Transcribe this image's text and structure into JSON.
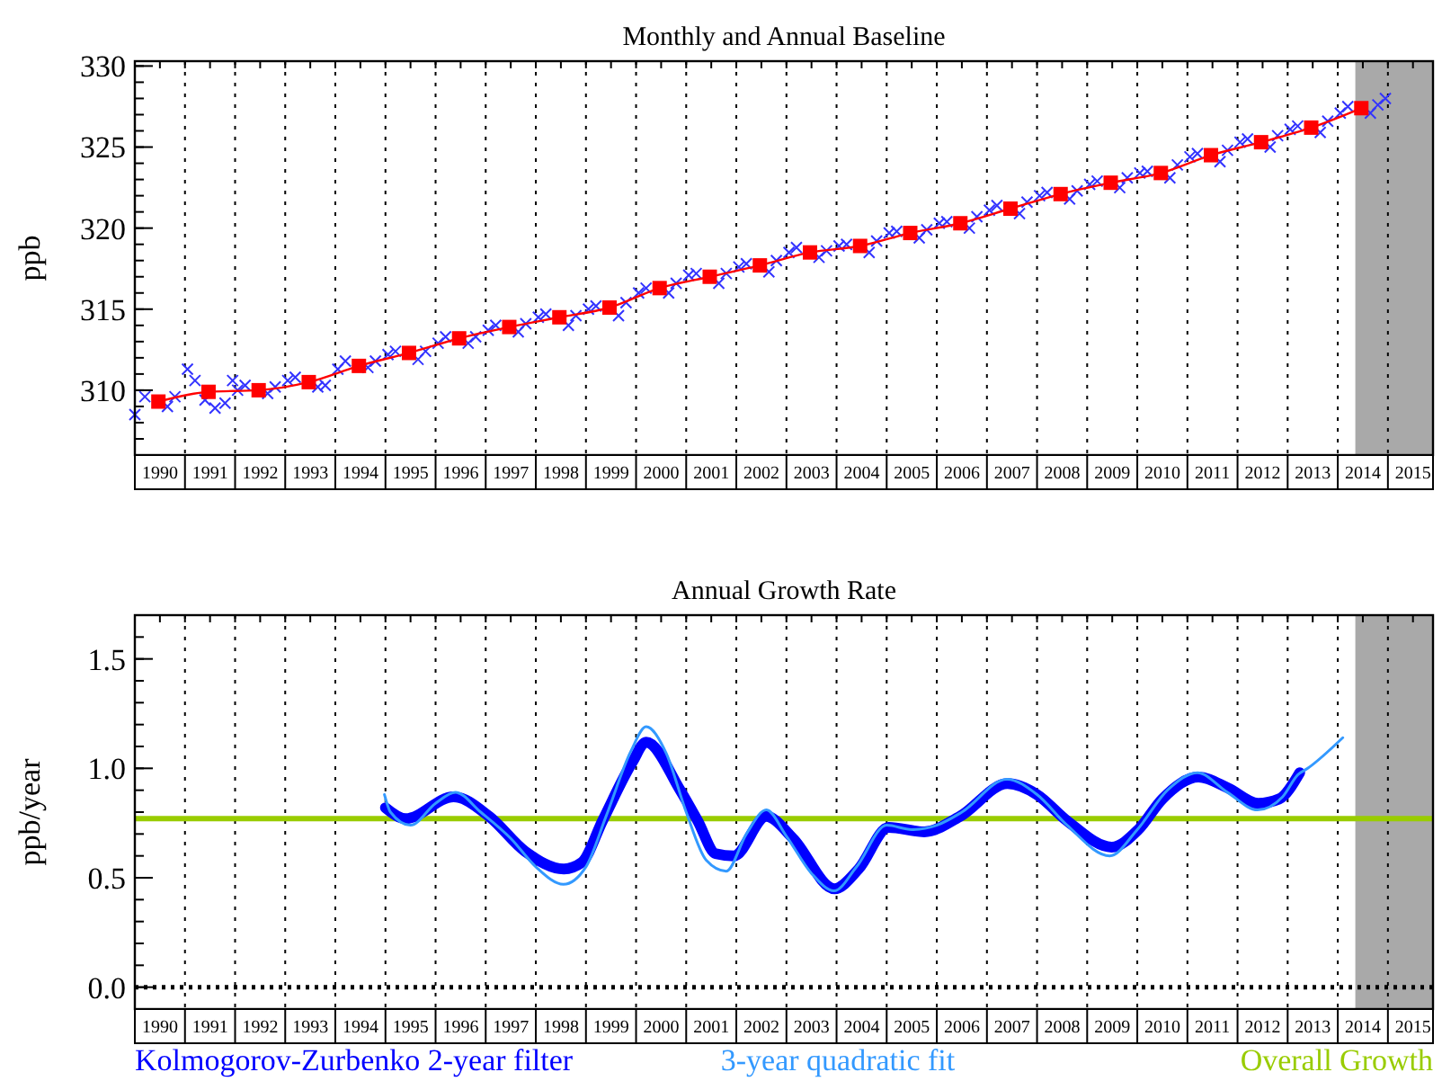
{
  "chart_data": [
    {
      "type": "scatter",
      "title": "Monthly and Annual Baseline",
      "ylabel": "ppb",
      "xlim": [
        1990,
        2015.9
      ],
      "ylim": [
        306,
        330.3
      ],
      "xticks": [
        {
          "value": 1990.5,
          "label": "1990"
        },
        {
          "value": 1991.5,
          "label": "1991"
        },
        {
          "value": 1992.5,
          "label": "1992"
        },
        {
          "value": 1993.5,
          "label": "1993"
        },
        {
          "value": 1994.5,
          "label": "1994"
        },
        {
          "value": 1995.5,
          "label": "1995"
        },
        {
          "value": 1996.5,
          "label": "1996"
        },
        {
          "value": 1997.5,
          "label": "1997"
        },
        {
          "value": 1998.5,
          "label": "1998"
        },
        {
          "value": 1999.5,
          "label": "1999"
        },
        {
          "value": 2000.5,
          "label": "2000"
        },
        {
          "value": 2001.5,
          "label": "2001"
        },
        {
          "value": 2002.5,
          "label": "2002"
        },
        {
          "value": 2003.5,
          "label": "2003"
        },
        {
          "value": 2004.5,
          "label": "2004"
        },
        {
          "value": 2005.5,
          "label": "2005"
        },
        {
          "value": 2006.5,
          "label": "2006"
        },
        {
          "value": 2007.5,
          "label": "2007"
        },
        {
          "value": 2008.5,
          "label": "2008"
        },
        {
          "value": 2009.5,
          "label": "2009"
        },
        {
          "value": 2010.5,
          "label": "2010"
        },
        {
          "value": 2011.5,
          "label": "2011"
        },
        {
          "value": 2012.5,
          "label": "2012"
        },
        {
          "value": 2013.5,
          "label": "2013"
        },
        {
          "value": 2014.5,
          "label": "2014"
        },
        {
          "value": 2015.5,
          "label": "2015"
        },
        {
          "value": 1991,
          "label": null
        },
        {
          "value": 1992,
          "label": null
        },
        {
          "value": 1993,
          "label": null
        },
        {
          "value": 1994,
          "label": null
        },
        {
          "value": 1995,
          "label": null
        },
        {
          "value": 1996,
          "label": null
        },
        {
          "value": 1997,
          "label": null
        },
        {
          "value": 1998,
          "label": null
        },
        {
          "value": 1999,
          "label": null
        },
        {
          "value": 2000,
          "label": null
        },
        {
          "value": 2001,
          "label": null
        },
        {
          "value": 2002,
          "label": null
        },
        {
          "value": 2003,
          "label": null
        },
        {
          "value": 2004,
          "label": null
        },
        {
          "value": 2005,
          "label": null
        },
        {
          "value": 2006,
          "label": null
        },
        {
          "value": 2007,
          "label": null
        },
        {
          "value": 2008,
          "label": null
        },
        {
          "value": 2009,
          "label": null
        },
        {
          "value": 2010,
          "label": null
        },
        {
          "value": 2011,
          "label": null
        },
        {
          "value": 2012,
          "label": null
        },
        {
          "value": 2013,
          "label": null
        },
        {
          "value": 2014,
          "label": null
        },
        {
          "value": 2015,
          "label": null
        }
      ],
      "yticks": [
        310,
        315,
        320,
        325,
        330
      ],
      "grid": "x",
      "legend": false,
      "bands": [
        {
          "axis": "x",
          "from": 2014.35,
          "to": 2015.9,
          "color": "#a9a9a9"
        }
      ],
      "series": [
        {
          "type": "scatter",
          "marker": "cross",
          "color": "#3333ff",
          "x": [
            1990.0,
            1990.2,
            1990.65,
            1990.8,
            1991.05,
            1991.2,
            1991.4,
            1991.6,
            1991.8,
            1991.95,
            1992.05,
            1992.2,
            1992.65,
            1992.8,
            1993.05,
            1993.2,
            1993.65,
            1993.8,
            1994.05,
            1994.2,
            1994.65,
            1994.8,
            1995.05,
            1995.2,
            1995.65,
            1995.8,
            1996.05,
            1996.2,
            1996.65,
            1996.8,
            1997.05,
            1997.2,
            1997.65,
            1997.8,
            1998.05,
            1998.2,
            1998.65,
            1998.8,
            1999.05,
            1999.2,
            1999.65,
            1999.8,
            2000.05,
            2000.2,
            2000.65,
            2000.8,
            2001.05,
            2001.2,
            2001.65,
            2001.8,
            2002.05,
            2002.2,
            2002.65,
            2002.8,
            2003.05,
            2003.2,
            2003.65,
            2003.8,
            2004.05,
            2004.2,
            2004.65,
            2004.8,
            2005.05,
            2005.2,
            2005.65,
            2005.8,
            2006.05,
            2006.2,
            2006.65,
            2006.8,
            2007.05,
            2007.2,
            2007.65,
            2007.8,
            2008.05,
            2008.2,
            2008.65,
            2008.8,
            2009.05,
            2009.2,
            2009.65,
            2009.8,
            2010.05,
            2010.2,
            2010.65,
            2010.8,
            2011.05,
            2011.2,
            2011.65,
            2011.8,
            2012.05,
            2012.2,
            2012.65,
            2012.8,
            2013.05,
            2013.2,
            2013.65,
            2013.8,
            2014.05,
            2014.2,
            2014.65,
            2014.8,
            2014.95
          ],
          "values": [
            308.5,
            309.6,
            309.0,
            309.6,
            311.3,
            310.6,
            309.4,
            308.9,
            309.2,
            310.6,
            310.0,
            310.3,
            309.8,
            310.2,
            310.6,
            310.8,
            310.2,
            310.3,
            311.3,
            311.8,
            311.4,
            311.8,
            312.2,
            312.4,
            311.9,
            312.4,
            312.9,
            313.3,
            312.9,
            313.3,
            313.7,
            314.0,
            313.6,
            314.1,
            314.5,
            314.7,
            314.0,
            314.6,
            315.0,
            315.2,
            314.6,
            315.4,
            316.0,
            316.3,
            316.0,
            316.6,
            317.1,
            317.2,
            316.6,
            317.2,
            317.6,
            317.8,
            317.3,
            318.0,
            318.5,
            318.8,
            318.2,
            318.6,
            318.9,
            319.0,
            318.5,
            319.2,
            319.7,
            319.8,
            319.4,
            319.9,
            320.3,
            320.4,
            320.0,
            320.7,
            321.1,
            321.4,
            320.9,
            321.6,
            322.0,
            322.2,
            321.8,
            322.3,
            322.7,
            322.9,
            322.5,
            323.1,
            323.4,
            323.5,
            323.1,
            323.9,
            324.4,
            324.6,
            324.1,
            324.8,
            325.3,
            325.5,
            325.0,
            325.7,
            326.1,
            326.3,
            325.9,
            326.6,
            327.1,
            327.5,
            327.1,
            327.6,
            328.0
          ]
        },
        {
          "type": "line",
          "marker": "square",
          "color": "#ff0000",
          "x": [
            1990.47,
            1991.47,
            1992.47,
            1993.47,
            1994.47,
            1995.47,
            1996.47,
            1997.47,
            1998.47,
            1999.47,
            2000.47,
            2001.47,
            2002.47,
            2003.47,
            2004.47,
            2005.47,
            2006.47,
            2007.47,
            2008.47,
            2009.47,
            2010.47,
            2011.47,
            2012.47,
            2013.47,
            2014.47
          ],
          "values": [
            309.3,
            309.9,
            310.0,
            310.5,
            311.5,
            312.3,
            313.2,
            313.9,
            314.5,
            315.1,
            316.3,
            317.0,
            317.7,
            318.5,
            318.9,
            319.7,
            320.3,
            321.2,
            322.1,
            322.8,
            323.4,
            324.5,
            325.3,
            326.2,
            327.4
          ]
        }
      ]
    },
    {
      "type": "line",
      "title": "Annual Growth Rate",
      "ylabel": "ppb/year",
      "xlim": [
        1990,
        2015.9
      ],
      "ylim": [
        -0.1,
        1.7
      ],
      "xticks": [
        {
          "value": 1990.5,
          "label": "1990"
        },
        {
          "value": 1991.5,
          "label": "1991"
        },
        {
          "value": 1992.5,
          "label": "1992"
        },
        {
          "value": 1993.5,
          "label": "1993"
        },
        {
          "value": 1994.5,
          "label": "1994"
        },
        {
          "value": 1995.5,
          "label": "1995"
        },
        {
          "value": 1996.5,
          "label": "1996"
        },
        {
          "value": 1997.5,
          "label": "1997"
        },
        {
          "value": 1998.5,
          "label": "1998"
        },
        {
          "value": 1999.5,
          "label": "1999"
        },
        {
          "value": 2000.5,
          "label": "2000"
        },
        {
          "value": 2001.5,
          "label": "2001"
        },
        {
          "value": 2002.5,
          "label": "2002"
        },
        {
          "value": 2003.5,
          "label": "2003"
        },
        {
          "value": 2004.5,
          "label": "2004"
        },
        {
          "value": 2005.5,
          "label": "2005"
        },
        {
          "value": 2006.5,
          "label": "2006"
        },
        {
          "value": 2007.5,
          "label": "2007"
        },
        {
          "value": 2008.5,
          "label": "2008"
        },
        {
          "value": 2009.5,
          "label": "2009"
        },
        {
          "value": 2010.5,
          "label": "2010"
        },
        {
          "value": 2011.5,
          "label": "2011"
        },
        {
          "value": 2012.5,
          "label": "2012"
        },
        {
          "value": 2013.5,
          "label": "2013"
        },
        {
          "value": 2014.5,
          "label": "2014"
        },
        {
          "value": 2015.5,
          "label": "2015"
        },
        {
          "value": 1991,
          "label": null
        },
        {
          "value": 1992,
          "label": null
        },
        {
          "value": 1993,
          "label": null
        },
        {
          "value": 1994,
          "label": null
        },
        {
          "value": 1995,
          "label": null
        },
        {
          "value": 1996,
          "label": null
        },
        {
          "value": 1997,
          "label": null
        },
        {
          "value": 1998,
          "label": null
        },
        {
          "value": 1999,
          "label": null
        },
        {
          "value": 2000,
          "label": null
        },
        {
          "value": 2001,
          "label": null
        },
        {
          "value": 2002,
          "label": null
        },
        {
          "value": 2003,
          "label": null
        },
        {
          "value": 2004,
          "label": null
        },
        {
          "value": 2005,
          "label": null
        },
        {
          "value": 2006,
          "label": null
        },
        {
          "value": 2007,
          "label": null
        },
        {
          "value": 2008,
          "label": null
        },
        {
          "value": 2009,
          "label": null
        },
        {
          "value": 2010,
          "label": null
        },
        {
          "value": 2011,
          "label": null
        },
        {
          "value": 2012,
          "label": null
        },
        {
          "value": 2013,
          "label": null
        },
        {
          "value": 2014,
          "label": null
        },
        {
          "value": 2015,
          "label": null
        }
      ],
      "yticks": [
        {
          "value": 0,
          "label": "0.0"
        },
        {
          "value": 0.5,
          "label": "0.5"
        },
        {
          "value": 1,
          "label": "1.0"
        },
        {
          "value": 1.5,
          "label": "1.5"
        }
      ],
      "grid": "x",
      "legend": "bottom",
      "marker": "none",
      "bands": [
        {
          "axis": "x",
          "from": 2014.35,
          "to": 2015.9,
          "color": "#a9a9a9"
        }
      ],
      "ref_lines": [
        {
          "axis": "y",
          "value": 0,
          "line_style": "dotted",
          "color": "#000000"
        },
        {
          "axis": "y",
          "value": 0.77,
          "label": "Overall Growth",
          "color": "#99cc00"
        }
      ],
      "series": [
        {
          "name": "Kolmogorov-Zurbenko 2-year filter",
          "color": "#0000ff",
          "x": [
            1995.0,
            1995.4,
            1996.36,
            1997.07,
            1997.79,
            1998.56,
            1998.92,
            1999.33,
            1999.93,
            2000.2,
            2000.88,
            2001.23,
            2001.59,
            2001.95,
            2002.6,
            2003.13,
            2003.96,
            2004.44,
            2005.04,
            2005.75,
            2006.46,
            2007.41,
            2008.0,
            2008.6,
            2009.49,
            2010.02,
            2010.5,
            2011.22,
            2011.81,
            2012.41,
            2012.83,
            2013.24
          ],
          "values": [
            0.82,
            0.77,
            0.87,
            0.78,
            0.62,
            0.54,
            0.57,
            0.76,
            1.03,
            1.12,
            0.9,
            0.76,
            0.61,
            0.6,
            0.78,
            0.68,
            0.45,
            0.54,
            0.73,
            0.71,
            0.78,
            0.93,
            0.88,
            0.76,
            0.64,
            0.72,
            0.86,
            0.96,
            0.91,
            0.84,
            0.86,
            0.98
          ]
        },
        {
          "name": "3-year quadratic fit",
          "color": "#3399ff",
          "x": [
            1994.98,
            1995.1,
            1995.5,
            1996.0,
            1996.4,
            1996.9,
            1997.5,
            1998.0,
            1998.55,
            1999.0,
            1999.4,
            1999.9,
            2000.2,
            2000.6,
            2001.0,
            2001.4,
            2001.8,
            2002.2,
            2002.6,
            2003.0,
            2003.5,
            2003.95,
            2004.4,
            2005.0,
            2005.5,
            2006.0,
            2006.5,
            2007.4,
            2008.0,
            2008.6,
            2009.45,
            2010.0,
            2010.6,
            2011.2,
            2011.8,
            2012.4,
            2012.9,
            2013.2,
            2013.4,
            2014.1
          ],
          "values": [
            0.88,
            0.8,
            0.74,
            0.84,
            0.89,
            0.8,
            0.68,
            0.55,
            0.47,
            0.55,
            0.78,
            1.08,
            1.19,
            1.07,
            0.8,
            0.58,
            0.53,
            0.7,
            0.81,
            0.69,
            0.52,
            0.44,
            0.55,
            0.74,
            0.72,
            0.74,
            0.8,
            0.95,
            0.88,
            0.74,
            0.6,
            0.72,
            0.9,
            0.98,
            0.89,
            0.81,
            0.87,
            0.97,
            1.0,
            1.14
          ]
        }
      ]
    }
  ]
}
